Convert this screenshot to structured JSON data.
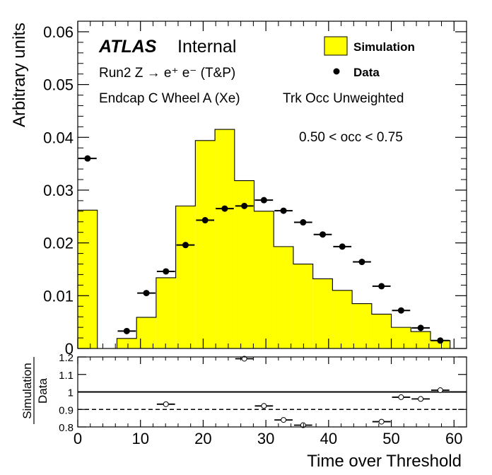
{
  "chart_data": [
    {
      "type": "bar",
      "subtype": "histogram-with-data-points",
      "title": "",
      "xlabel": "Time over Threshold",
      "ylabel": "Arbitrary units",
      "xlim": [
        0,
        62
      ],
      "ylim": [
        0,
        0.062
      ],
      "x_ticks": [
        "0",
        "10",
        "20",
        "30",
        "40",
        "50",
        "60"
      ],
      "y_ticks": [
        "0",
        "0.01",
        "0.02",
        "0.03",
        "0.04",
        "0.05",
        "0.06"
      ],
      "annotations": {
        "atlas": "ATLAS",
        "internal": "Internal",
        "process": "Run2 Z → e⁺ e⁻ (T&P)",
        "region": "Endcap C Wheel A (Xe)",
        "weighting": "Trk Occ Unweighted",
        "occupancy": "0.50 < occ < 0.75"
      },
      "legend": {
        "position": "top-right",
        "entries": [
          {
            "label": "Simulation",
            "style": "fill",
            "color": "#ffff00"
          },
          {
            "label": "Data",
            "style": "marker",
            "color": "#000000"
          }
        ]
      },
      "bin_edges": [
        0,
        3.125,
        6.25,
        9.375,
        12.5,
        15.625,
        18.75,
        21.875,
        25,
        28.125,
        31.25,
        34.375,
        37.5,
        40.625,
        43.75,
        46.875,
        50,
        53.125,
        56.25,
        59.375
      ],
      "series": [
        {
          "name": "Simulation",
          "color": "#ffff00",
          "values": [
            0.0262,
            0,
            0.0019,
            0.0059,
            0.0134,
            0.027,
            0.0394,
            0.0415,
            0.0318,
            0.026,
            0.0193,
            0.016,
            0.0132,
            0.011,
            0.0085,
            0.0065,
            0.004,
            0.0032,
            0.0015
          ]
        },
        {
          "name": "Data",
          "color": "#000000",
          "values": [
            0.036,
            null,
            0.0033,
            0.0105,
            0.0146,
            0.0196,
            0.0243,
            0.0265,
            0.027,
            0.0281,
            0.0261,
            0.0239,
            0.0216,
            0.0193,
            0.0164,
            0.0118,
            0.0072,
            0.0039,
            0.0015
          ]
        }
      ]
    },
    {
      "type": "scatter",
      "ylabel_top": "Simulation",
      "ylabel_bottom": "Data",
      "xlim": [
        0,
        62
      ],
      "ylim": [
        0.8,
        1.2
      ],
      "y_ticks": [
        "0.8",
        "0.9",
        "1",
        "1.1",
        "1.2"
      ],
      "reference_lines": [
        1.0,
        0.9
      ],
      "points": [
        {
          "x": 14.0625,
          "y": 0.93
        },
        {
          "x": 26.5625,
          "y": 1.19
        },
        {
          "x": 29.6875,
          "y": 0.92
        },
        {
          "x": 32.8125,
          "y": 0.84
        },
        {
          "x": 35.9375,
          "y": 0.81
        },
        {
          "x": 48.4375,
          "y": 0.83
        },
        {
          "x": 51.5625,
          "y": 0.97
        },
        {
          "x": 54.6875,
          "y": 0.96
        },
        {
          "x": 57.8125,
          "y": 1.01
        }
      ]
    }
  ]
}
